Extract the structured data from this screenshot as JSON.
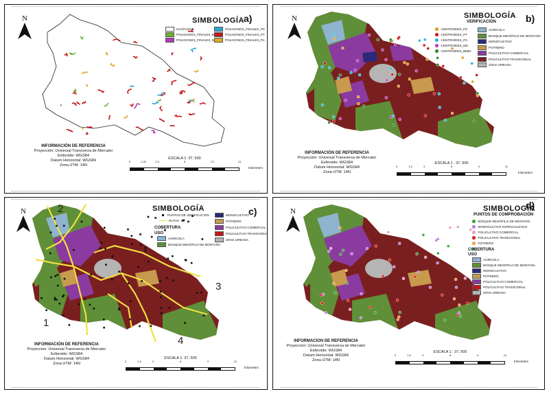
{
  "panel_a": {
    "label": "a)",
    "north": "N",
    "legend_title": "SIMBOLOGÍA",
    "legend": [
      {
        "label": "HUATUSCO",
        "color": "#ffffff"
      },
      {
        "label": "POLIGONOS_FINALES_PC",
        "color": "#2aa6d6"
      },
      {
        "label": "POLIGONOS_FINALES_BMM",
        "color": "#6bb22e"
      },
      {
        "label": "POLIGONOS_FINALES_PT",
        "color": "#c4161c"
      },
      {
        "label": "POLIGONOS_FINALES_MS",
        "color": "#b03ab8"
      },
      {
        "label": "POLIGONOS_FINALES_Po",
        "color": "#e0a82a"
      }
    ],
    "info_title": "INFORMACIÓN DE REFERENCIA",
    "info_lines": [
      "Proyección: Universal Transversa de Mercator",
      "Esferoide: WGS84",
      "Datum Horizontal: WGS84",
      "Zona UTM: 14N"
    ],
    "scale_text": "ESCALA 1: 37, 500",
    "scale_ticks": [
      "0",
      "1.25",
      "2.5",
      "5",
      "7.5",
      "10"
    ],
    "scale_unit": "Kilometers"
  },
  "panel_b": {
    "label": "b)",
    "north": "N",
    "legend_title": "SIMBOLOGÍA",
    "legend_subtitle": "VERIFICACIÓN",
    "points": [
      {
        "label": "CENTROIDES_PZ",
        "color": "#e0a020"
      },
      {
        "label": "CENTROIDES_PT",
        "color": "#d01818"
      },
      {
        "label": "CENTROIDES_PC",
        "color": "#2fb8d8"
      },
      {
        "label": "CENTROIDES_MS",
        "color": "#c040c0"
      },
      {
        "label": "CENTROIDES_BMM",
        "color": "#2e8b2e"
      }
    ],
    "classes": [
      {
        "label": "AGRICOLA",
        "color": "#8fb4cf"
      },
      {
        "label": "BOSQUE MESÓFILO DE MONTAÑA",
        "color": "#5f8f38"
      },
      {
        "label": "MONOCULTIVO",
        "color": "#2b2a7a"
      },
      {
        "label": "POTRERO",
        "color": "#c79a4e"
      },
      {
        "label": "POLICULTIVO COMERCIAL",
        "color": "#8b3aa0"
      },
      {
        "label": "POLICULTIVO TRADICIONAL",
        "color": "#7a1f1f"
      },
      {
        "label": "ZONA URBANA",
        "color": "#b5b5b5"
      }
    ],
    "info_title": "INFORMACIÓN DE REFERENCIA",
    "info_lines": [
      "Proyección: Universal Transversa de Mercator",
      "Esferoide: WGS84",
      "Datum Horizontal: WGS84",
      "Zona UTM: 14N"
    ],
    "scale_text": "ESCALA 1 : 37, 500",
    "scale_ticks": [
      "0",
      "1.5",
      "3",
      "6",
      "9",
      "12"
    ],
    "scale_unit": "Kilometers"
  },
  "panel_c": {
    "label": "c)",
    "north": "N",
    "legend_title": "SIMBOLOGÍA",
    "points_label": "PUNTOS DE VERIFICACIÓN",
    "routes_label": "RUTAS",
    "cobertura": "COBERTURA",
    "uso": "USO",
    "classes_left": [
      {
        "label": "AGRICOLA",
        "color": "#8fb4cf"
      },
      {
        "label": "BOSQUE MESÓFILO DE MONTAÑA",
        "color": "#5f8f38"
      }
    ],
    "classes_right": [
      {
        "label": "MONOCULTIVO",
        "color": "#2b2a7a"
      },
      {
        "label": "POTRERO",
        "color": "#c79a4e"
      },
      {
        "label": "POLICULTIVO COMERCIAL",
        "color": "#8b3aa0"
      },
      {
        "label": "POLICULTIVO TRADICIONAL",
        "color": "#c4161c"
      },
      {
        "label": "ZONA URBANA",
        "color": "#b5b5b5"
      }
    ],
    "zones": [
      "1",
      "2",
      "3",
      "4"
    ],
    "info_title": "INFORMACIÓN DE REFERENCIA",
    "info_lines": [
      "Proyeccion: Universal Transversa de Mercator",
      "Esferoide: WGS84",
      "Datum Horizontal: WGS84",
      "Zona UTM: 14N"
    ],
    "scale_text": "ESCALA 1: 37, 500",
    "scale_ticks": [
      "0",
      "1.5",
      "3",
      "6",
      "9",
      "12"
    ],
    "scale_unit": "Kilometers"
  },
  "panel_d": {
    "label": "d)",
    "north": "N",
    "legend_title": "SIMBOLOGÍA",
    "legend_subtitle": "PUNTOS DE COMPROBACIÓN",
    "points": [
      {
        "label": "BOSQUE MESÓFILO DE MONTAÑA",
        "color": "#3aa63a"
      },
      {
        "label": "MONOCULTIVO ESPECIALIZADO",
        "color": "#c080e0"
      },
      {
        "label": "POLICULTIVO COMERCIAL",
        "color": "#e8a0c8"
      },
      {
        "label": "POLICULTIVO TRADICIONAL",
        "color": "#e02020"
      },
      {
        "label": "POTRERO",
        "color": "#f0a050"
      }
    ],
    "cobertura": "COBERTURA",
    "uso": "USO",
    "classes": [
      {
        "label": "AGRICOLA",
        "color": "#8fb4cf"
      },
      {
        "label": "BOSQUE MESÓFILO DE MONTAÑA",
        "color": "#5f8f38"
      },
      {
        "label": "MONOCULTIVO",
        "color": "#2b2a7a"
      },
      {
        "label": "POTRERO",
        "color": "#c79a4e"
      },
      {
        "label": "POLICULTIVO COMERCIAL",
        "color": "#8b3aa0"
      },
      {
        "label": "POLICULTIVO TRADICIONAL",
        "color": "#c4161c"
      },
      {
        "label": "ZONA URBANA",
        "color": "#b5b5b5"
      }
    ],
    "info_title": "INFORMACION DE REFERENCIA",
    "info_lines": [
      "Proyeccion: Universal Transversa de Mercator",
      "Esferoide: WGS84",
      "Datum Horizontal: WGS84",
      "Zona UTM: 14N"
    ],
    "scale_text": "ESCALA 1 : 37, 500",
    "scale_ticks": [
      "0",
      "1.5",
      "3",
      "6",
      "9",
      "12"
    ],
    "scale_unit": "Kilometers"
  }
}
